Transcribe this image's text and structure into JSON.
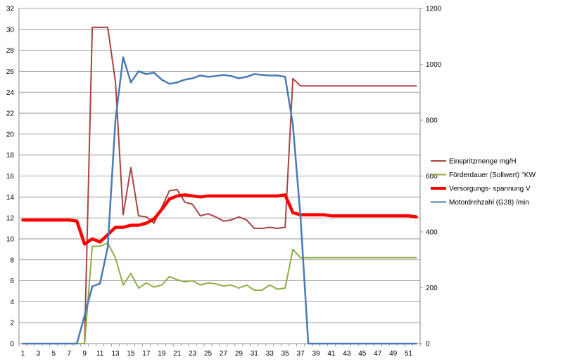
{
  "chart_data": {
    "type": "line",
    "x": [
      1,
      2,
      3,
      4,
      5,
      6,
      7,
      8,
      9,
      10,
      11,
      12,
      13,
      14,
      15,
      16,
      17,
      18,
      19,
      20,
      21,
      22,
      23,
      24,
      25,
      26,
      27,
      28,
      29,
      30,
      31,
      32,
      33,
      34,
      35,
      36,
      37,
      38,
      39,
      40,
      41,
      42,
      43,
      44,
      45,
      46,
      47,
      48,
      49,
      50,
      51,
      52
    ],
    "x_tick_labels": [
      "1",
      "3",
      "5",
      "7",
      "9",
      "11",
      "13",
      "15",
      "17",
      "19",
      "21",
      "23",
      "25",
      "27",
      "29",
      "31",
      "33",
      "35",
      "37",
      "39",
      "41",
      "43",
      "45",
      "47",
      "49",
      "51"
    ],
    "y_left": {
      "ticks": [
        "0",
        "2",
        "4",
        "6",
        "8",
        "10",
        "12",
        "14",
        "16",
        "18",
        "20",
        "22",
        "24",
        "26",
        "28",
        "30",
        "32"
      ],
      "lim": [
        0,
        32
      ]
    },
    "y_right": {
      "ticks": [
        "0",
        "200",
        "400",
        "600",
        "800",
        "1000",
        "1200"
      ],
      "lim": [
        0,
        1200
      ]
    },
    "grid": true,
    "legend_position": "right",
    "series": [
      {
        "name": "Einspritzmenge  mg/H",
        "axis": "left",
        "color": "#a94343",
        "width": 2,
        "values": [
          0,
          0,
          0,
          0,
          0,
          0,
          0,
          0,
          0,
          30.2,
          30.2,
          30.2,
          25,
          12.3,
          16.8,
          12.2,
          12.1,
          11.5,
          13,
          14.6,
          14.7,
          13.5,
          13.3,
          12.2,
          12.4,
          12.1,
          11.7,
          11.8,
          12.1,
          11.8,
          11,
          11,
          11.1,
          11,
          11.1,
          25.3,
          24.6,
          24.6,
          24.6,
          24.6,
          24.6,
          24.6,
          24.6,
          24.6,
          24.6,
          24.6,
          24.6,
          24.6,
          24.6,
          24.6,
          24.6,
          24.6
        ]
      },
      {
        "name": "Förderdauer (Sollwert) °KW",
        "axis": "left",
        "color": "#8fae47",
        "width": 2,
        "values": [
          0,
          0,
          0,
          0,
          0,
          0,
          0,
          0,
          0,
          9.3,
          9.3,
          9.6,
          8.2,
          5.6,
          6.7,
          5.3,
          5.8,
          5.4,
          5.6,
          6.4,
          6.1,
          5.9,
          6,
          5.6,
          5.8,
          5.7,
          5.5,
          5.6,
          5.3,
          5.6,
          5.1,
          5.1,
          5.6,
          5.2,
          5.3,
          9,
          8.2,
          8.2,
          8.2,
          8.2,
          8.2,
          8.2,
          8.2,
          8.2,
          8.2,
          8.2,
          8.2,
          8.2,
          8.2,
          8.2,
          8.2,
          8.2
        ]
      },
      {
        "name": "Versorgungs- spannung  V",
        "axis": "left",
        "color": "#ff0000",
        "width": 4.5,
        "values": [
          11.8,
          11.8,
          11.8,
          11.8,
          11.8,
          11.8,
          11.8,
          11.7,
          9.5,
          10,
          9.7,
          10.4,
          11.1,
          11.1,
          11.3,
          11.3,
          11.5,
          11.9,
          12.8,
          13.8,
          14.1,
          14.2,
          14.1,
          14,
          14.1,
          14.1,
          14.1,
          14.1,
          14.1,
          14.1,
          14.1,
          14.1,
          14.1,
          14.1,
          14.2,
          12.5,
          12.3,
          12.3,
          12.3,
          12.3,
          12.2,
          12.2,
          12.2,
          12.2,
          12.2,
          12.2,
          12.2,
          12.2,
          12.2,
          12.2,
          12.2,
          12.1
        ]
      },
      {
        "name": "Motordrehzahl (G28)  /min",
        "axis": "right",
        "color": "#4a7ab5",
        "width": 2.5,
        "values": [
          0,
          0,
          0,
          0,
          0,
          0,
          0,
          0,
          100,
          205,
          215,
          345,
          800,
          1025,
          935,
          975,
          965,
          970,
          945,
          930,
          935,
          945,
          950,
          960,
          955,
          958,
          962,
          958,
          950,
          955,
          965,
          962,
          960,
          960,
          955,
          785,
          450,
          0,
          0,
          0,
          0,
          0,
          0,
          0,
          0,
          0,
          0,
          0,
          0,
          0,
          0,
          0
        ]
      }
    ]
  }
}
